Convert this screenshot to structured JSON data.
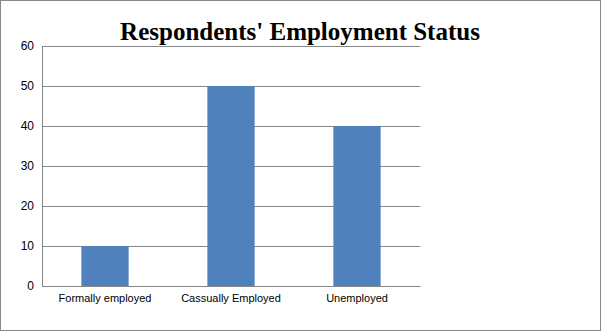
{
  "chart_data": {
    "type": "bar",
    "title": "Respondents' Employment Status",
    "categories": [
      "Formally employed",
      "Cassually Employed",
      "Unemployed"
    ],
    "values": [
      10,
      50,
      40
    ],
    "color": "#4f81bd",
    "ylim": [
      0,
      60
    ],
    "yticks": [
      0,
      10,
      20,
      30,
      40,
      50,
      60
    ],
    "grid": true
  }
}
